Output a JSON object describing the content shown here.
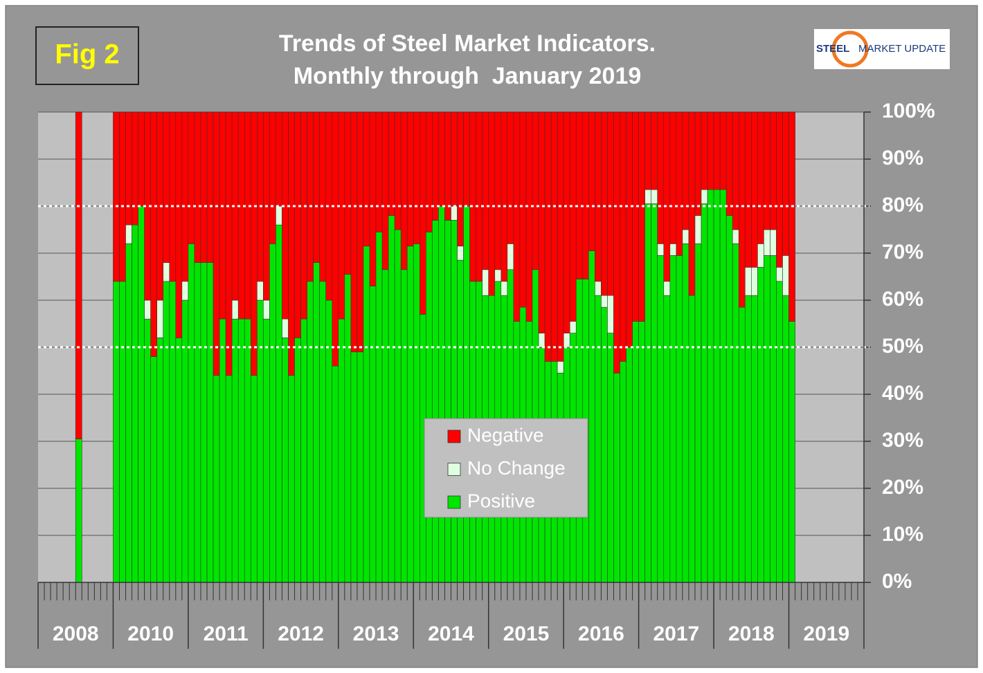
{
  "fig_label": "Fig 2",
  "logo": [
    "STEEL",
    "MARKET UPDATE"
  ],
  "chart_data": {
    "type": "stacked_bar",
    "title": "Trends of Steel Market Indicators.",
    "subtitle": "Monthly through  January 2019",
    "year_labels": [
      "2008",
      "2010",
      "2011",
      "2012",
      "2013",
      "2014",
      "2015",
      "2016",
      "2017",
      "2018",
      "2019"
    ],
    "ylim": [
      0,
      100
    ],
    "yticks": [
      {
        "value": 0,
        "label": "0%"
      },
      {
        "value": 10,
        "label": "10%"
      },
      {
        "value": 20,
        "label": "20%"
      },
      {
        "value": 30,
        "label": "30%"
      },
      {
        "value": 40,
        "label": "40%"
      },
      {
        "value": 50,
        "label": "50%"
      },
      {
        "value": 60,
        "label": "60%"
      },
      {
        "value": 70,
        "label": "70%"
      },
      {
        "value": 80,
        "label": "80%"
      },
      {
        "value": 90,
        "label": "90%"
      },
      {
        "value": 100,
        "label": "100%"
      }
    ],
    "reference_lines": [
      50,
      80
    ],
    "grid": true,
    "series": [
      {
        "name": "Negative",
        "color": "#ff0000",
        "values": [
          null,
          null,
          null,
          null,
          null,
          null,
          69.5,
          null,
          null,
          null,
          null,
          null,
          36,
          36,
          24,
          24,
          20,
          40,
          52,
          40,
          32,
          36,
          48,
          36,
          28,
          32,
          32,
          32,
          56,
          44,
          56,
          40,
          44,
          44,
          56,
          36,
          40,
          28,
          20,
          44,
          56,
          48,
          44,
          36,
          32,
          36,
          40,
          54,
          44,
          34.5,
          51,
          51,
          28.5,
          37,
          25.5,
          33.5,
          22,
          25,
          33.5,
          28.5,
          28,
          43,
          25.5,
          23,
          20,
          23,
          20,
          28.5,
          20,
          36,
          36,
          33.5,
          39,
          33.5,
          36,
          28,
          44.5,
          41.5,
          44.5,
          33.5,
          47,
          53,
          53,
          53,
          47,
          44.5,
          35.5,
          35.5,
          29.5,
          36,
          39,
          39,
          55.5,
          53,
          50,
          44.5,
          44.5,
          16.5,
          16.5,
          28,
          36,
          28,
          30.5,
          25,
          39,
          22,
          16.5,
          16.5,
          16.5,
          16.5,
          22,
          25,
          41.5,
          33,
          33,
          28,
          25,
          25,
          33,
          30.5,
          44.5,
          null,
          null,
          null,
          null,
          null,
          null,
          null,
          null,
          null,
          null,
          null
        ]
      },
      {
        "name": "No Change",
        "color": "#e0ffe0",
        "values": [
          null,
          null,
          null,
          null,
          null,
          null,
          0,
          null,
          null,
          null,
          null,
          null,
          0,
          0,
          4,
          0,
          0,
          4,
          0,
          8,
          4,
          0,
          0,
          4,
          0,
          0,
          0,
          0,
          0,
          0,
          0,
          4,
          0,
          0,
          0,
          4,
          4,
          0,
          4,
          4,
          0,
          0,
          0,
          0,
          0,
          0,
          0,
          0,
          0,
          0,
          0,
          0,
          0,
          0,
          0,
          0,
          0,
          0,
          0,
          0,
          0,
          0,
          0,
          0,
          0,
          0,
          3,
          3,
          0,
          0,
          0,
          5.5,
          0,
          2.5,
          3,
          5.5,
          0,
          0,
          0,
          0,
          3,
          0,
          0,
          2.5,
          3,
          2.5,
          0,
          0,
          0,
          3,
          2.5,
          8,
          0,
          0,
          0,
          0,
          0,
          3,
          3,
          2.5,
          3,
          2.5,
          0,
          3,
          0,
          6,
          3,
          0,
          0,
          0,
          0,
          3,
          0,
          6,
          6,
          5,
          5.5,
          5.5,
          3,
          8.5,
          0,
          null,
          null,
          null,
          null,
          null,
          null,
          null,
          null,
          null,
          null,
          null
        ]
      },
      {
        "name": "Positive",
        "color": "#00e600",
        "values": [
          null,
          null,
          null,
          null,
          null,
          null,
          30.5,
          null,
          null,
          null,
          null,
          null,
          64,
          64,
          72,
          76,
          80,
          56,
          48,
          52,
          64,
          64,
          52,
          60,
          72,
          68,
          68,
          68,
          44,
          56,
          44,
          56,
          56,
          56,
          44,
          60,
          56,
          72,
          76,
          52,
          44,
          52,
          56,
          64,
          68,
          64,
          60,
          46,
          56,
          65.5,
          49,
          49,
          71.5,
          63,
          74.5,
          66.5,
          78,
          75,
          66.5,
          71.5,
          72,
          57,
          74.5,
          77,
          80,
          77,
          77,
          68.5,
          80,
          64,
          64,
          61,
          61,
          64,
          61,
          66.5,
          55.5,
          58.5,
          55.5,
          66.5,
          50,
          47,
          47,
          44.5,
          50,
          53,
          64.5,
          64.5,
          70.5,
          61,
          58.5,
          53,
          44.5,
          47,
          50,
          55.5,
          55.5,
          80.5,
          80.5,
          69.5,
          61,
          69.5,
          69.5,
          72,
          61,
          72,
          80.5,
          83.5,
          83.5,
          83.5,
          78,
          72,
          58.5,
          61,
          61,
          67,
          69.5,
          69.5,
          64,
          61,
          55.5,
          null,
          null,
          null,
          null,
          null,
          null,
          null,
          null,
          null,
          null,
          null
        ]
      }
    ]
  }
}
